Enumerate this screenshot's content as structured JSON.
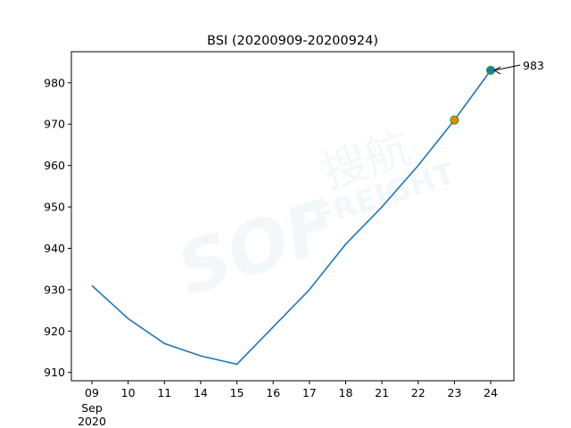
{
  "chart_data": {
    "type": "line",
    "title": "BSI (20200909-20200924)",
    "xlabel": "",
    "ylabel": "",
    "categories": [
      "09",
      "10",
      "11",
      "14",
      "15",
      "16",
      "17",
      "18",
      "21",
      "22",
      "23",
      "24"
    ],
    "x_sublabels": [
      "Sep",
      "2020"
    ],
    "series": [
      {
        "values": [
          931,
          923,
          917,
          914,
          912,
          921,
          930,
          941,
          950,
          960,
          971,
          983
        ],
        "color": "#1f77b4"
      }
    ],
    "ylim": [
      908,
      987.5
    ],
    "yticks": [
      910,
      920,
      930,
      940,
      950,
      960,
      970,
      980
    ],
    "grid": false,
    "highlight_points": [
      {
        "category": "23",
        "value": 971,
        "fill": "#ff7f0e",
        "edge": "#2ca02c"
      },
      {
        "category": "24",
        "value": 983,
        "fill": "#1f77b4",
        "edge": "#2ca02c"
      }
    ],
    "annotation": {
      "text": "983",
      "category": "24",
      "value": 983
    },
    "watermark": "SOF 搜航 FREIGHT"
  }
}
